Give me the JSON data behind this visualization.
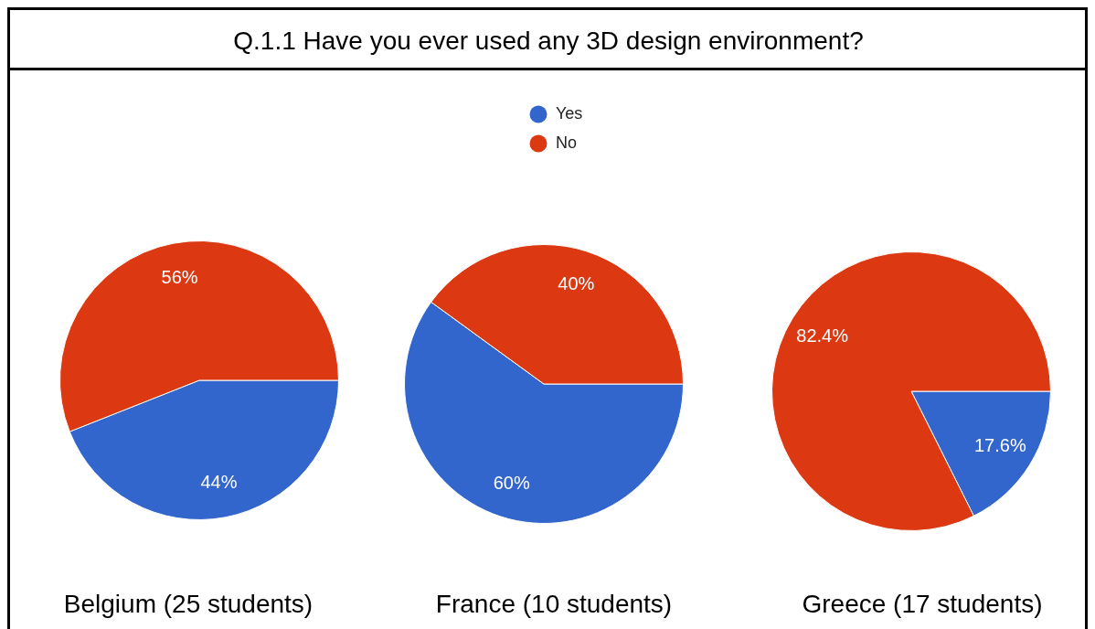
{
  "chart_data": [
    {
      "type": "pie",
      "categories": [
        null,
        null
      ],
      "values": [
        44,
        56
      ],
      "colors": [
        "#3366cc",
        "#dc3912"
      ],
      "value_labels": [
        "44%",
        "56%"
      ],
      "xlabel": "Belgium (25 students)"
    },
    {
      "type": "pie",
      "title": "Q.1.1 Have you ever used any 3D design environment?",
      "categories": [
        "Yes",
        "No"
      ],
      "values": [
        60,
        40
      ],
      "colors": [
        "#3366cc",
        "#dc3912"
      ],
      "value_labels": [
        "60%",
        "40%"
      ],
      "xlabel": "France (10 students)",
      "legend": "top"
    },
    {
      "type": "pie",
      "categories": [
        null,
        null
      ],
      "values": [
        17.6,
        82.4
      ],
      "colors": [
        "#3366cc",
        "#dc3912"
      ],
      "value_labels": [
        "17.6%",
        "82.4%"
      ],
      "xlabel": "Greece (17 students)"
    }
  ]
}
